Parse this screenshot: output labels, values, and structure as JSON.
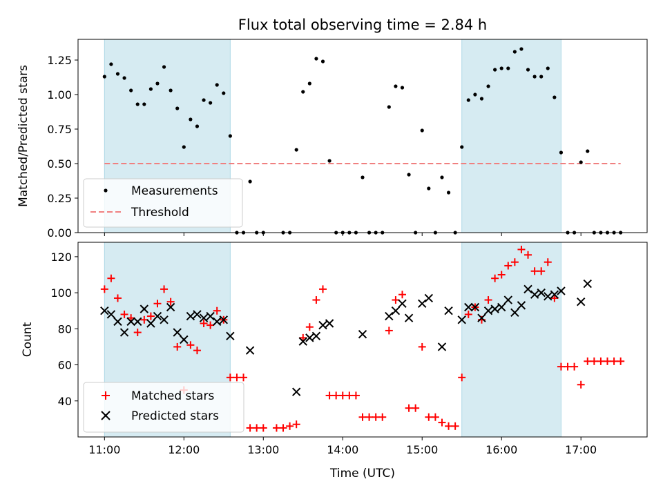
{
  "figure": {
    "title": "Flux total observing time = 2.84 h",
    "xlabel": "Time (UTC)",
    "shaded_intervals": [
      [
        "11:00",
        "12:35"
      ],
      [
        "15:30",
        "16:45"
      ]
    ],
    "colors": {
      "shade": "#add8e6",
      "measurements": "#000000",
      "threshold": "#f08080",
      "matched": "#ff0000",
      "predicted": "#000000"
    }
  },
  "chart_data": [
    {
      "type": "scatter",
      "ylabel": "Matched/Predicted stars",
      "xlabel": "",
      "xlim": [
        "10:40",
        "17:50"
      ],
      "ylim": [
        0,
        1.4
      ],
      "yticks": [
        0.0,
        0.25,
        0.5,
        0.75,
        1.0,
        1.25
      ],
      "ytick_labels": [
        "0.00",
        "0.25",
        "0.50",
        "0.75",
        "1.00",
        "1.25"
      ],
      "legend_position": "lower-left",
      "threshold": {
        "name": "Threshold",
        "value": 0.5,
        "x_range": [
          "11:00",
          "17:30"
        ]
      },
      "series": [
        {
          "name": "Measurements",
          "points": [
            [
              "11:00",
              1.13
            ],
            [
              "11:05",
              1.22
            ],
            [
              "11:10",
              1.15
            ],
            [
              "11:15",
              1.12
            ],
            [
              "11:20",
              1.03
            ],
            [
              "11:25",
              0.93
            ],
            [
              "11:30",
              0.93
            ],
            [
              "11:35",
              1.04
            ],
            [
              "11:40",
              1.08
            ],
            [
              "11:45",
              1.2
            ],
            [
              "11:50",
              1.03
            ],
            [
              "11:55",
              0.9
            ],
            [
              "12:00",
              0.62
            ],
            [
              "12:05",
              0.82
            ],
            [
              "12:10",
              0.77
            ],
            [
              "12:15",
              0.96
            ],
            [
              "12:20",
              0.94
            ],
            [
              "12:25",
              1.07
            ],
            [
              "12:30",
              1.01
            ],
            [
              "12:35",
              0.7
            ],
            [
              "12:40",
              0.0
            ],
            [
              "12:45",
              0.0
            ],
            [
              "12:50",
              0.37
            ],
            [
              "12:55",
              0.0
            ],
            [
              "13:00",
              0.0
            ],
            [
              "13:15",
              0.0
            ],
            [
              "13:20",
              0.0
            ],
            [
              "13:25",
              0.6
            ],
            [
              "13:30",
              1.02
            ],
            [
              "13:35",
              1.08
            ],
            [
              "13:40",
              1.26
            ],
            [
              "13:45",
              1.24
            ],
            [
              "13:50",
              0.52
            ],
            [
              "13:55",
              0.0
            ],
            [
              "14:00",
              0.0
            ],
            [
              "14:05",
              0.0
            ],
            [
              "14:10",
              0.0
            ],
            [
              "14:15",
              0.4
            ],
            [
              "14:20",
              0.0
            ],
            [
              "14:25",
              0.0
            ],
            [
              "14:30",
              0.0
            ],
            [
              "14:35",
              0.91
            ],
            [
              "14:40",
              1.06
            ],
            [
              "14:45",
              1.05
            ],
            [
              "14:50",
              0.42
            ],
            [
              "14:55",
              0.0
            ],
            [
              "15:00",
              0.74
            ],
            [
              "15:05",
              0.32
            ],
            [
              "15:10",
              0.0
            ],
            [
              "15:15",
              0.4
            ],
            [
              "15:20",
              0.29
            ],
            [
              "15:25",
              0.0
            ],
            [
              "15:30",
              0.62
            ],
            [
              "15:35",
              0.96
            ],
            [
              "15:40",
              1.0
            ],
            [
              "15:45",
              0.97
            ],
            [
              "15:50",
              1.06
            ],
            [
              "15:55",
              1.18
            ],
            [
              "16:00",
              1.19
            ],
            [
              "16:05",
              1.19
            ],
            [
              "16:10",
              1.31
            ],
            [
              "16:15",
              1.33
            ],
            [
              "16:20",
              1.18
            ],
            [
              "16:25",
              1.13
            ],
            [
              "16:30",
              1.13
            ],
            [
              "16:35",
              1.19
            ],
            [
              "16:40",
              0.98
            ],
            [
              "16:45",
              0.58
            ],
            [
              "16:50",
              0.0
            ],
            [
              "16:55",
              0.0
            ],
            [
              "17:00",
              0.51
            ],
            [
              "17:05",
              0.59
            ],
            [
              "17:10",
              0.0
            ],
            [
              "17:15",
              0.0
            ],
            [
              "17:20",
              0.0
            ],
            [
              "17:25",
              0.0
            ],
            [
              "17:30",
              0.0
            ]
          ]
        }
      ]
    },
    {
      "type": "scatter",
      "ylabel": "Count",
      "xlabel": "Time (UTC)",
      "xlim": [
        "10:40",
        "17:50"
      ],
      "ylim": [
        20,
        128
      ],
      "yticks": [
        40,
        60,
        80,
        100,
        120
      ],
      "xticks": [
        "11:00",
        "12:00",
        "13:00",
        "14:00",
        "15:00",
        "16:00",
        "17:00"
      ],
      "legend_position": "lower-left",
      "series": [
        {
          "name": "Matched stars",
          "marker": "plus",
          "points": [
            [
              "11:00",
              102
            ],
            [
              "11:05",
              108
            ],
            [
              "11:10",
              97
            ],
            [
              "11:15",
              88
            ],
            [
              "11:20",
              86
            ],
            [
              "11:25",
              78
            ],
            [
              "11:30",
              85
            ],
            [
              "11:35",
              87
            ],
            [
              "11:40",
              94
            ],
            [
              "11:45",
              102
            ],
            [
              "11:50",
              95
            ],
            [
              "11:55",
              70
            ],
            [
              "12:00",
              46
            ],
            [
              "12:05",
              71
            ],
            [
              "12:10",
              68
            ],
            [
              "12:15",
              83
            ],
            [
              "12:20",
              82
            ],
            [
              "12:25",
              90
            ],
            [
              "12:30",
              85
            ],
            [
              "12:35",
              53
            ],
            [
              "12:40",
              53
            ],
            [
              "12:45",
              53
            ],
            [
              "12:50",
              25
            ],
            [
              "12:55",
              25
            ],
            [
              "13:00",
              25
            ],
            [
              "13:10",
              25
            ],
            [
              "13:15",
              25
            ],
            [
              "13:20",
              26
            ],
            [
              "13:25",
              27
            ],
            [
              "13:30",
              75
            ],
            [
              "13:35",
              81
            ],
            [
              "13:40",
              96
            ],
            [
              "13:45",
              102
            ],
            [
              "13:50",
              43
            ],
            [
              "13:55",
              43
            ],
            [
              "14:00",
              43
            ],
            [
              "14:05",
              43
            ],
            [
              "14:10",
              43
            ],
            [
              "14:15",
              31
            ],
            [
              "14:20",
              31
            ],
            [
              "14:25",
              31
            ],
            [
              "14:30",
              31
            ],
            [
              "14:35",
              79
            ],
            [
              "14:40",
              96
            ],
            [
              "14:45",
              99
            ],
            [
              "14:50",
              36
            ],
            [
              "14:55",
              36
            ],
            [
              "15:00",
              70
            ],
            [
              "15:05",
              31
            ],
            [
              "15:10",
              31
            ],
            [
              "15:15",
              28
            ],
            [
              "15:20",
              26
            ],
            [
              "15:25",
              26
            ],
            [
              "15:30",
              53
            ],
            [
              "15:35",
              88
            ],
            [
              "15:40",
              92
            ],
            [
              "15:45",
              85
            ],
            [
              "15:50",
              96
            ],
            [
              "15:55",
              108
            ],
            [
              "16:00",
              110
            ],
            [
              "16:05",
              115
            ],
            [
              "16:10",
              117
            ],
            [
              "16:15",
              124
            ],
            [
              "16:20",
              121
            ],
            [
              "16:25",
              112
            ],
            [
              "16:30",
              112
            ],
            [
              "16:35",
              117
            ],
            [
              "16:40",
              97
            ],
            [
              "16:45",
              59
            ],
            [
              "16:50",
              59
            ],
            [
              "16:55",
              59
            ],
            [
              "17:00",
              49
            ],
            [
              "17:05",
              62
            ],
            [
              "17:10",
              62
            ],
            [
              "17:15",
              62
            ],
            [
              "17:20",
              62
            ],
            [
              "17:25",
              62
            ],
            [
              "17:30",
              62
            ]
          ]
        },
        {
          "name": "Predicted stars",
          "marker": "x",
          "points": [
            [
              "11:00",
              90
            ],
            [
              "11:05",
              88
            ],
            [
              "11:10",
              84
            ],
            [
              "11:15",
              78
            ],
            [
              "11:20",
              84
            ],
            [
              "11:25",
              84
            ],
            [
              "11:30",
              91
            ],
            [
              "11:35",
              83
            ],
            [
              "11:40",
              87
            ],
            [
              "11:45",
              85
            ],
            [
              "11:50",
              92
            ],
            [
              "11:55",
              78
            ],
            [
              "12:00",
              74
            ],
            [
              "12:05",
              87
            ],
            [
              "12:10",
              88
            ],
            [
              "12:15",
              86
            ],
            [
              "12:20",
              87
            ],
            [
              "12:25",
              84
            ],
            [
              "12:30",
              85
            ],
            [
              "12:35",
              76
            ],
            [
              "12:50",
              68
            ],
            [
              "13:25",
              45
            ],
            [
              "13:30",
              73
            ],
            [
              "13:35",
              75
            ],
            [
              "13:40",
              76
            ],
            [
              "13:45",
              82
            ],
            [
              "13:50",
              83
            ],
            [
              "14:15",
              77
            ],
            [
              "14:35",
              87
            ],
            [
              "14:40",
              90
            ],
            [
              "14:45",
              94
            ],
            [
              "14:50",
              86
            ],
            [
              "15:00",
              94
            ],
            [
              "15:05",
              97
            ],
            [
              "15:15",
              70
            ],
            [
              "15:20",
              90
            ],
            [
              "15:30",
              85
            ],
            [
              "15:35",
              92
            ],
            [
              "15:40",
              92
            ],
            [
              "15:45",
              86
            ],
            [
              "15:50",
              90
            ],
            [
              "15:55",
              91
            ],
            [
              "16:00",
              92
            ],
            [
              "16:05",
              96
            ],
            [
              "16:10",
              89
            ],
            [
              "16:15",
              93
            ],
            [
              "16:20",
              102
            ],
            [
              "16:25",
              99
            ],
            [
              "16:30",
              100
            ],
            [
              "16:35",
              98
            ],
            [
              "16:40",
              99
            ],
            [
              "16:45",
              101
            ],
            [
              "17:00",
              95
            ],
            [
              "17:05",
              105
            ]
          ]
        }
      ]
    }
  ]
}
